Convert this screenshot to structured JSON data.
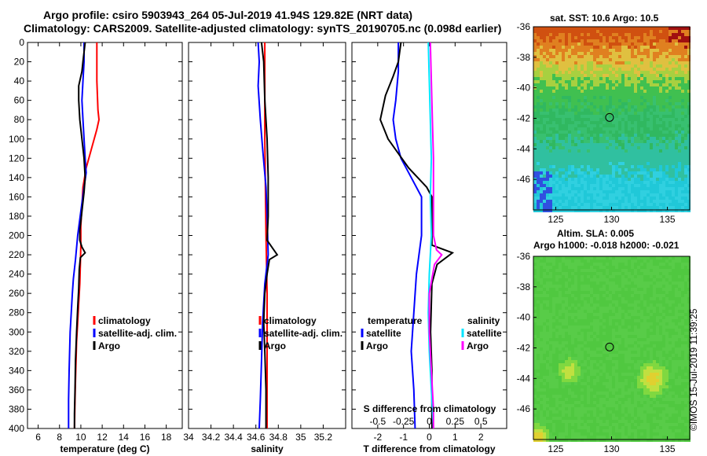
{
  "header": {
    "line1": "Argo profile: csiro 5903943_264 05-Jul-2019 41.94S 129.82E (NRT data)",
    "line2": "Climatology: CARS2009. Satellite-adjusted climatology: synTS_20190705.nc (0.098d earlier)"
  },
  "colors": {
    "climatology": "#ff0000",
    "satellite": "#0000ff",
    "argo": "#000000",
    "s_satellite": "#00e5ff",
    "s_argo": "#ff00ff"
  },
  "depth_axis": {
    "ticks": [
      0,
      20,
      40,
      60,
      80,
      100,
      120,
      140,
      160,
      180,
      200,
      220,
      240,
      260,
      280,
      300,
      320,
      340,
      360,
      380,
      400
    ]
  },
  "chart_data": [
    {
      "type": "line",
      "name": "temperature",
      "xlabel": "temperature (deg C)",
      "xlim": [
        5,
        19.5
      ],
      "ylim": [
        0,
        400
      ],
      "xticks": [
        6,
        8,
        10,
        12,
        14,
        16,
        18
      ],
      "legend": [
        "climatology",
        "satellite-adj. clim.",
        "Argo"
      ],
      "series": [
        {
          "name": "climatology",
          "color": "#ff0000",
          "points": [
            [
              11.5,
              0
            ],
            [
              11.5,
              40
            ],
            [
              11.6,
              70
            ],
            [
              11.7,
              80
            ],
            [
              11.5,
              90
            ],
            [
              11.0,
              110
            ],
            [
              10.5,
              130
            ],
            [
              10.2,
              150
            ],
            [
              10.1,
              170
            ],
            [
              10.0,
              190
            ],
            [
              10.0,
              210
            ],
            [
              9.95,
              230
            ],
            [
              9.9,
              250
            ],
            [
              9.8,
              270
            ],
            [
              9.7,
              290
            ],
            [
              9.6,
              310
            ],
            [
              9.55,
              330
            ],
            [
              9.5,
              350
            ],
            [
              9.45,
              370
            ],
            [
              9.4,
              400
            ]
          ]
        },
        {
          "name": "satellite-adj. clim.",
          "color": "#0000ff",
          "points": [
            [
              10.3,
              0
            ],
            [
              10.3,
              20
            ],
            [
              10.2,
              40
            ],
            [
              10.1,
              60
            ],
            [
              10.2,
              80
            ],
            [
              10.3,
              100
            ],
            [
              10.4,
              120
            ],
            [
              10.5,
              135
            ],
            [
              10.3,
              150
            ],
            [
              10.0,
              175
            ],
            [
              9.7,
              200
            ],
            [
              9.5,
              225
            ],
            [
              9.3,
              245
            ],
            [
              9.2,
              260
            ],
            [
              9.1,
              280
            ],
            [
              9.0,
              300
            ],
            [
              8.9,
              340
            ],
            [
              8.85,
              370
            ],
            [
              8.85,
              400
            ]
          ]
        },
        {
          "name": "Argo",
          "color": "#000000",
          "points": [
            [
              10.4,
              0
            ],
            [
              10.3,
              10
            ],
            [
              10.2,
              20
            ],
            [
              10.1,
              30
            ],
            [
              9.8,
              45
            ],
            [
              9.8,
              60
            ],
            [
              9.9,
              80
            ],
            [
              10.1,
              100
            ],
            [
              10.3,
              120
            ],
            [
              10.4,
              140
            ],
            [
              10.3,
              155
            ],
            [
              10.1,
              175
            ],
            [
              9.9,
              195
            ],
            [
              9.9,
              205
            ],
            [
              10.1,
              212
            ],
            [
              10.4,
              218
            ],
            [
              9.95,
              223
            ],
            [
              9.85,
              235
            ],
            [
              9.8,
              255
            ],
            [
              9.7,
              275
            ],
            [
              9.6,
              300
            ],
            [
              9.5,
              330
            ],
            [
              9.45,
              360
            ],
            [
              9.4,
              385
            ],
            [
              9.4,
              400
            ]
          ]
        }
      ]
    },
    {
      "type": "line",
      "name": "salinity",
      "xlabel": "salinity",
      "xlim": [
        34,
        35.4
      ],
      "ylim": [
        0,
        400
      ],
      "xticks": [
        34,
        34.2,
        34.4,
        34.6,
        34.8,
        35,
        35.2
      ],
      "legend": [
        "climatology",
        "satellite-adj. clim.",
        "Argo"
      ],
      "series": [
        {
          "name": "climatology",
          "color": "#ff0000",
          "points": [
            [
              34.68,
              0
            ],
            [
              34.68,
              100
            ],
            [
              34.69,
              200
            ],
            [
              34.7,
              260
            ],
            [
              34.7,
              400
            ]
          ]
        },
        {
          "name": "satellite-adj. clim.",
          "color": "#0000ff",
          "points": [
            [
              34.62,
              0
            ],
            [
              34.63,
              20
            ],
            [
              34.62,
              45
            ],
            [
              34.64,
              80
            ],
            [
              34.66,
              110
            ],
            [
              34.69,
              150
            ],
            [
              34.7,
              180
            ],
            [
              34.71,
              220
            ],
            [
              34.68,
              250
            ],
            [
              34.66,
              290
            ],
            [
              34.65,
              330
            ],
            [
              34.64,
              370
            ],
            [
              34.63,
              400
            ]
          ]
        },
        {
          "name": "Argo",
          "color": "#000000",
          "points": [
            [
              34.65,
              0
            ],
            [
              34.67,
              20
            ],
            [
              34.68,
              60
            ],
            [
              34.7,
              100
            ],
            [
              34.71,
              140
            ],
            [
              34.71,
              180
            ],
            [
              34.7,
              205
            ],
            [
              34.76,
              215
            ],
            [
              34.79,
              220
            ],
            [
              34.72,
              225
            ],
            [
              34.7,
              240
            ],
            [
              34.68,
              260
            ],
            [
              34.67,
              290
            ],
            [
              34.68,
              320
            ],
            [
              34.69,
              360
            ],
            [
              34.69,
              400
            ]
          ]
        }
      ]
    },
    {
      "type": "line",
      "name": "difference",
      "xlabel": "T difference from climatology",
      "top_xlabel": "S difference from climatology",
      "xlim": [
        -3,
        3
      ],
      "top_xlim": [
        -0.75,
        0.75
      ],
      "ylim": [
        0,
        400
      ],
      "xticks": [
        -2,
        -1,
        0,
        1,
        2
      ],
      "top_xticks": [
        "-0.5",
        "-0.25",
        "0",
        "0.25",
        "0.5"
      ],
      "legend_temperature_title": "temperature",
      "legend_salinity_title": "salinity",
      "legend_temperature": [
        "satellite",
        "Argo"
      ],
      "legend_salinity": [
        "satellite",
        "Argo"
      ],
      "series": [
        {
          "name": "T satellite",
          "color": "#0000ff",
          "scale": "T",
          "points": [
            [
              -1.2,
              0
            ],
            [
              -1.2,
              30
            ],
            [
              -1.3,
              60
            ],
            [
              -1.4,
              80
            ],
            [
              -1.3,
              100
            ],
            [
              -1.1,
              120
            ],
            [
              -0.7,
              140
            ],
            [
              -0.3,
              160
            ],
            [
              -0.3,
              200
            ],
            [
              -0.5,
              240
            ],
            [
              -0.6,
              280
            ],
            [
              -0.7,
              320
            ],
            [
              -0.6,
              360
            ],
            [
              -0.55,
              400
            ]
          ]
        },
        {
          "name": "T Argo",
          "color": "#000000",
          "scale": "T",
          "points": [
            [
              -1.1,
              0
            ],
            [
              -1.2,
              20
            ],
            [
              -1.4,
              35
            ],
            [
              -1.7,
              55
            ],
            [
              -1.9,
              80
            ],
            [
              -1.6,
              100
            ],
            [
              -0.8,
              130
            ],
            [
              -0.1,
              150
            ],
            [
              0.1,
              160
            ],
            [
              0.1,
              190
            ],
            [
              0.1,
              210
            ],
            [
              0.9,
              218
            ],
            [
              0.3,
              230
            ],
            [
              0.1,
              250
            ],
            [
              0.05,
              300
            ],
            [
              0.1,
              340
            ],
            [
              0.1,
              400
            ]
          ]
        },
        {
          "name": "S satellite",
          "color": "#00e5ff",
          "scale": "S",
          "points": [
            [
              -0.01,
              0
            ],
            [
              0,
              40
            ],
            [
              0.01,
              80
            ],
            [
              0.02,
              120
            ],
            [
              0.01,
              160
            ],
            [
              0.02,
              200
            ],
            [
              0.0,
              240
            ],
            [
              -0.01,
              280
            ],
            [
              0.0,
              320
            ],
            [
              0.02,
              360
            ],
            [
              0.04,
              400
            ]
          ]
        },
        {
          "name": "S Argo",
          "color": "#ff00ff",
          "scale": "S",
          "points": [
            [
              0.01,
              0
            ],
            [
              0.02,
              40
            ],
            [
              0.03,
              80
            ],
            [
              0.04,
              120
            ],
            [
              0.04,
              160
            ],
            [
              0.04,
              200
            ],
            [
              0.07,
              215
            ],
            [
              0.12,
              220
            ],
            [
              0.05,
              230
            ],
            [
              0.0,
              260
            ],
            [
              0.0,
              300
            ],
            [
              0.02,
              340
            ],
            [
              0.04,
              380
            ],
            [
              0.04,
              400
            ]
          ]
        }
      ]
    },
    {
      "type": "heatmap",
      "name": "sst_map",
      "title": "sat. SST: 10.6  Argo: 10.5",
      "xticks": [
        125,
        130,
        135
      ],
      "yticks": [
        -36,
        -38,
        -40,
        -42,
        -44,
        -46
      ],
      "xlim": [
        123,
        137
      ],
      "ylim": [
        -48,
        -36
      ],
      "marker": {
        "lon": 129.82,
        "lat": -41.94
      }
    },
    {
      "type": "heatmap",
      "name": "sla_map",
      "title": "Altim. SLA: 0.005",
      "subtitle": "Argo h1000: -0.018  h2000: -0.021",
      "xticks": [
        125,
        130,
        135
      ],
      "yticks": [
        -36,
        -38,
        -40,
        -42,
        -44,
        -46
      ],
      "xlim": [
        123,
        137
      ],
      "ylim": [
        -48,
        -36
      ],
      "marker": {
        "lon": 129.82,
        "lat": -41.94
      }
    }
  ],
  "watermark": "©IMOS 15-Jul-2019 11:39:25"
}
